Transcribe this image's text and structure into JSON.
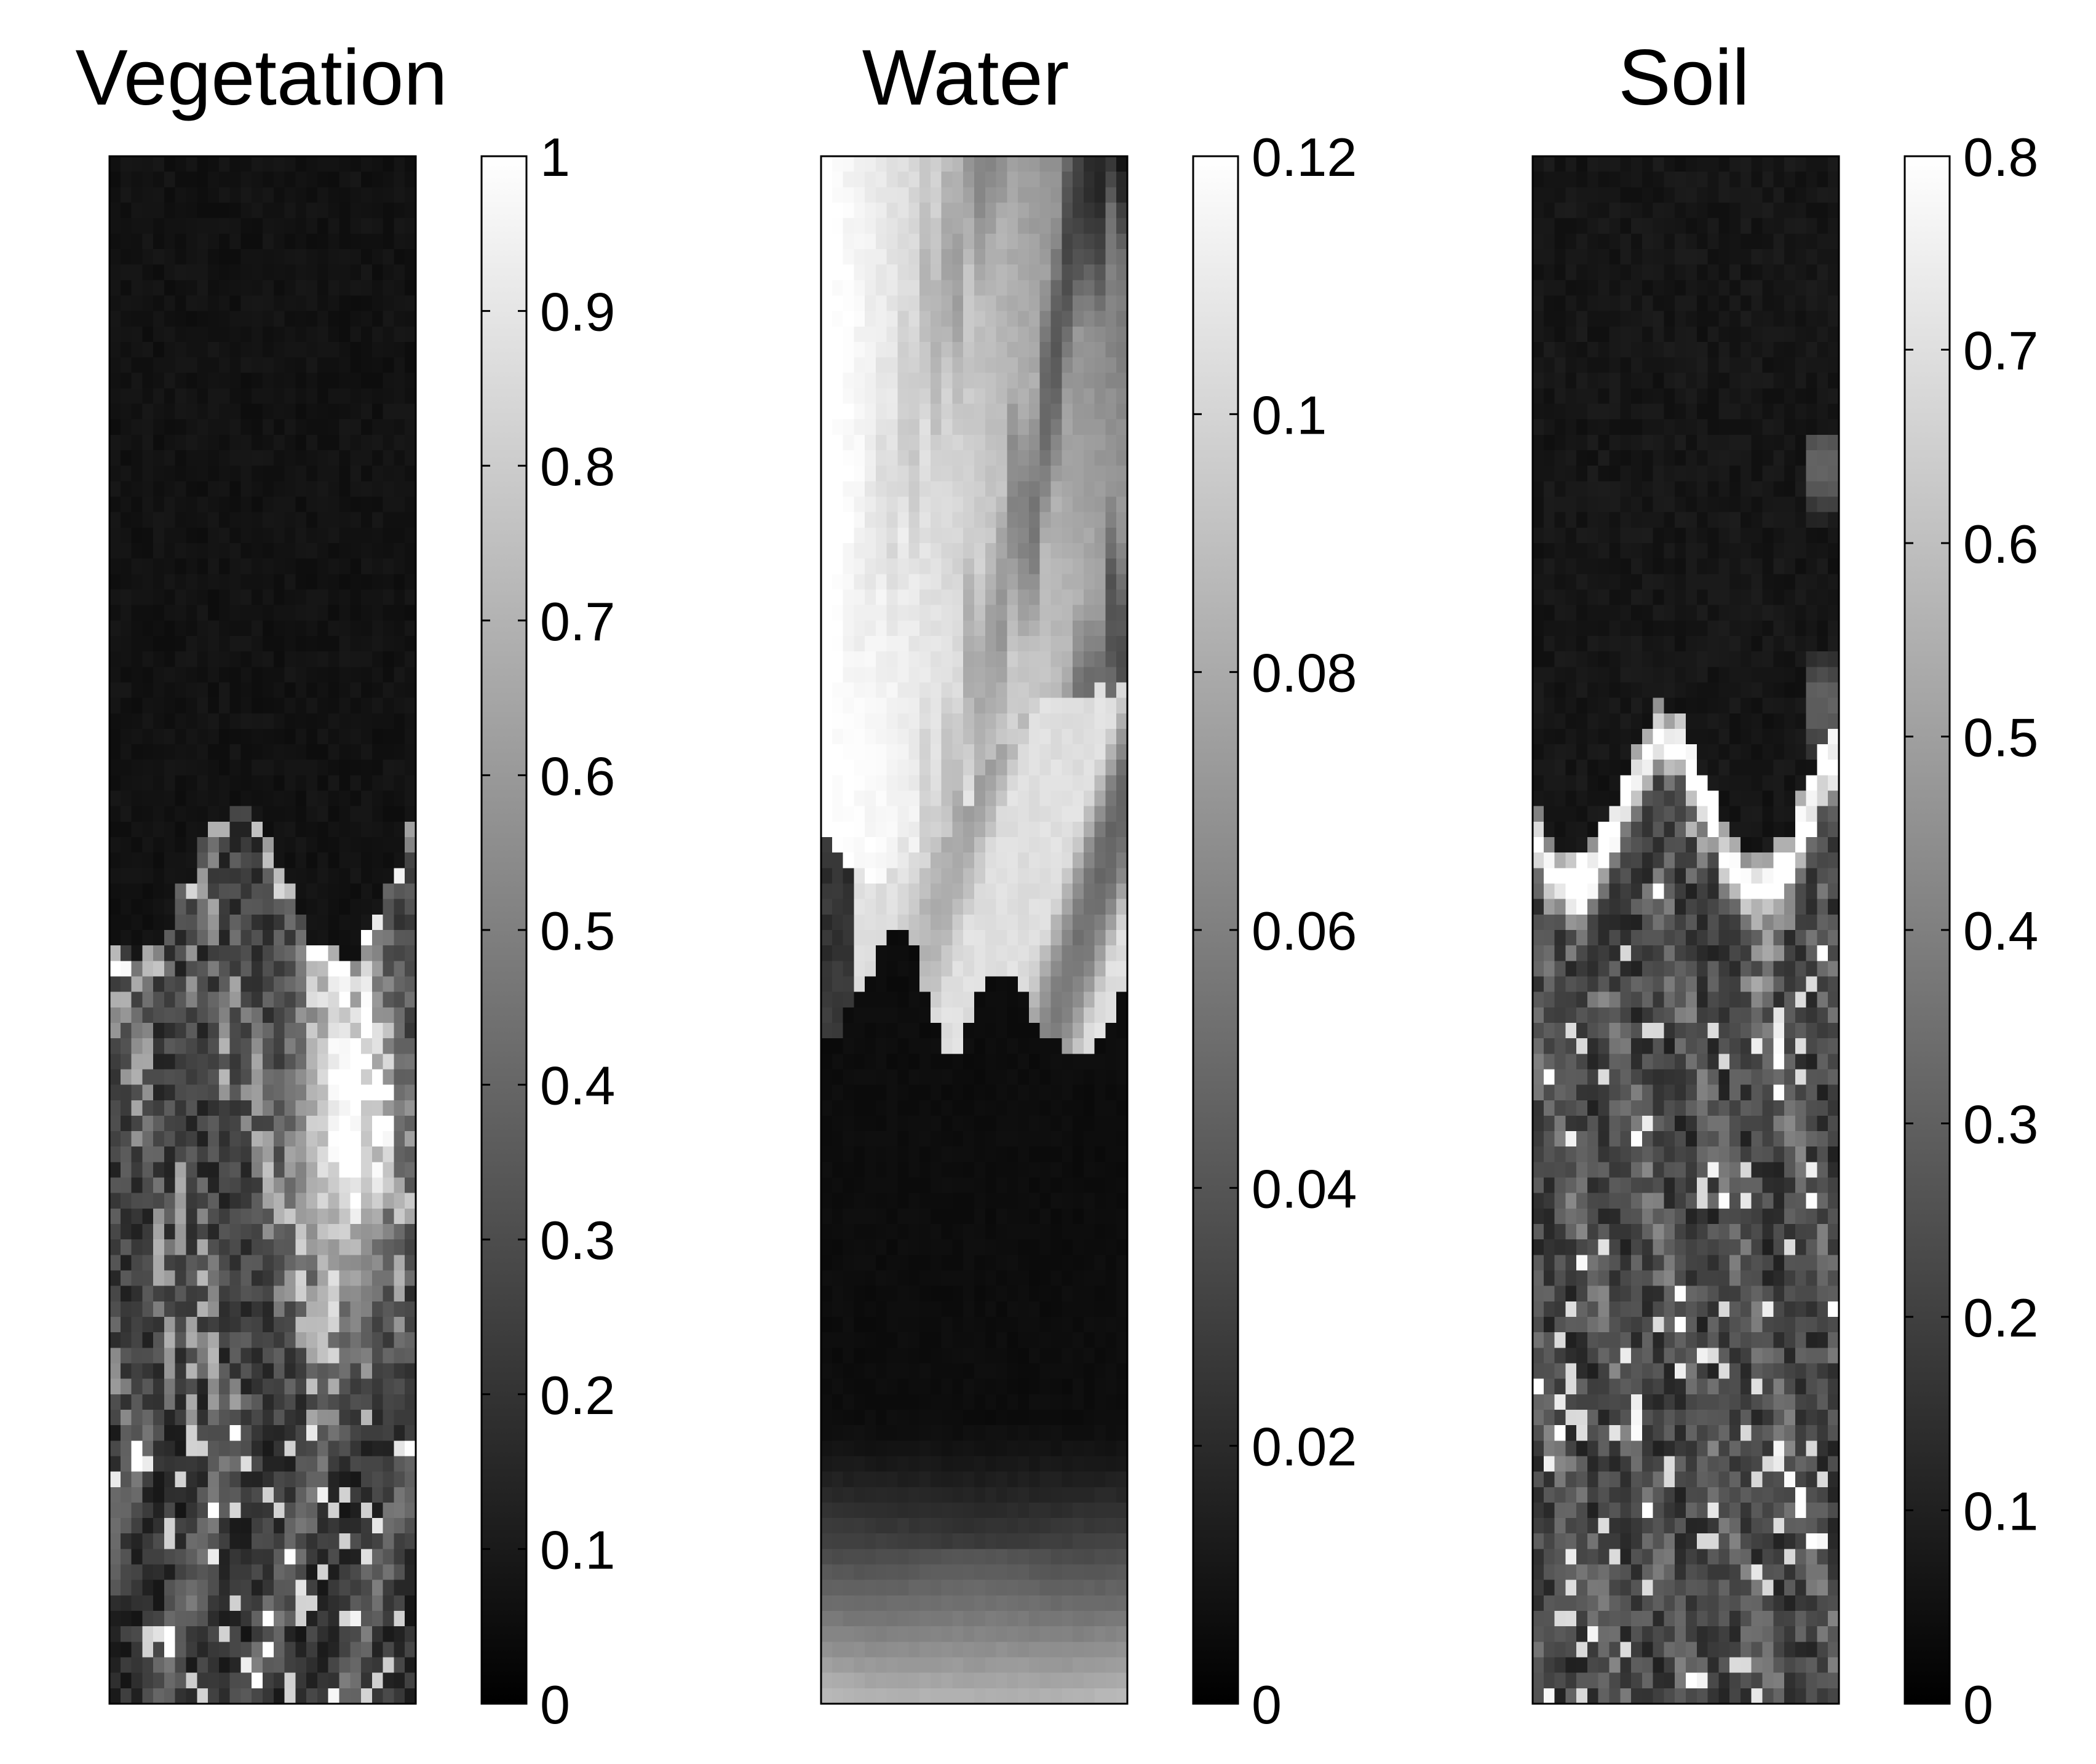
{
  "chart_data": [
    {
      "type": "heatmap",
      "title": "Vegetation",
      "colormap": "gray",
      "colorbar": {
        "min": 0,
        "max": 1,
        "ticks": [
          0,
          0.1,
          0.2,
          0.3,
          0.4,
          0.5,
          0.6,
          0.7,
          0.8,
          0.9,
          1
        ],
        "tick_labels": [
          "0",
          "0.1",
          "0.2",
          "0.3",
          "0.4",
          "0.5",
          "0.6",
          "0.7",
          "0.8",
          "0.9",
          "1"
        ]
      },
      "grid": {
        "cols": 28,
        "rows": 100
      },
      "pattern": "vegetation",
      "seed": 11
    },
    {
      "type": "heatmap",
      "title": "Water",
      "colormap": "gray",
      "colorbar": {
        "min": 0,
        "max": 0.12,
        "ticks": [
          0,
          0.02,
          0.04,
          0.06,
          0.08,
          0.1,
          0.12
        ],
        "tick_labels": [
          "0",
          "0.02",
          "0.04",
          "0.06",
          "0.08",
          "0.1",
          "0.12"
        ]
      },
      "grid": {
        "cols": 28,
        "rows": 100
      },
      "pattern": "water",
      "seed": 23
    },
    {
      "type": "heatmap",
      "title": "Soil",
      "colormap": "gray",
      "colorbar": {
        "min": 0,
        "max": 0.8,
        "ticks": [
          0,
          0.1,
          0.2,
          0.3,
          0.4,
          0.5,
          0.6,
          0.7,
          0.8
        ],
        "tick_labels": [
          "0",
          "0.1",
          "0.2",
          "0.3",
          "0.4",
          "0.5",
          "0.6",
          "0.7",
          "0.8"
        ]
      },
      "grid": {
        "cols": 28,
        "rows": 100
      },
      "pattern": "soil",
      "seed": 37
    }
  ]
}
